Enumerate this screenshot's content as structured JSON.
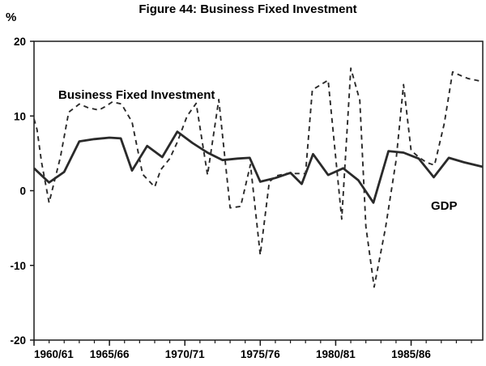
{
  "chart_data": {
    "type": "line",
    "title": "Figure 44: Business Fixed Investment",
    "ylabel": "%",
    "xlabel": "",
    "ylim": [
      -20,
      20
    ],
    "yticks": [
      -20,
      -10,
      0,
      10,
      20
    ],
    "x_range": [
      1960,
      1989.75
    ],
    "x_ticks": [
      {
        "label": "1960/61",
        "x": 1960
      },
      {
        "label": "1965/66",
        "x": 1965
      },
      {
        "label": "1970/71",
        "x": 1970
      },
      {
        "label": "1975/76",
        "x": 1975
      },
      {
        "label": "1980/81",
        "x": 1980
      },
      {
        "label": "1985/86",
        "x": 1985
      }
    ],
    "series": [
      {
        "name": "Business Fixed Investment",
        "style": "dashed",
        "label_text": "Business Fixed Investment",
        "x": [
          1960,
          1960.2,
          1960.5,
          1961,
          1961.75,
          1962.3,
          1963,
          1963.6,
          1964.3,
          1964.75,
          1965.2,
          1965.8,
          1966.5,
          1967.2,
          1968,
          1968.4,
          1969,
          1969.5,
          1970.15,
          1970.75,
          1971.5,
          1972.25,
          1973,
          1973.7,
          1974.35,
          1975,
          1975.6,
          1976.1,
          1976.75,
          1977.5,
          1978,
          1978.45,
          1979.5,
          1980.4,
          1981,
          1981.6,
          1982,
          1982.55,
          1983.3,
          1984,
          1984.5,
          1985,
          1985.5,
          1986,
          1986.55,
          1987.2,
          1987.75,
          1988.3,
          1988.8,
          1989.3,
          1989.75
        ],
        "values": [
          9.6,
          8.2,
          3.8,
          -1.6,
          4.5,
          10.5,
          11.6,
          11.1,
          10.8,
          11.3,
          11.9,
          11.6,
          9.2,
          2.2,
          0.5,
          2.8,
          4.3,
          6.5,
          10.0,
          11.7,
          2.1,
          12.2,
          -2.3,
          -2.1,
          3.5,
          -8.6,
          1.2,
          2.0,
          2.3,
          2.3,
          2.3,
          13.5,
          14.8,
          -3.8,
          16.4,
          12.1,
          -4.8,
          -12.9,
          -5.0,
          4.0,
          14.2,
          5.4,
          4.5,
          3.8,
          3.4,
          9.0,
          15.9,
          15.4,
          15.0,
          14.8,
          14.6
        ]
      },
      {
        "name": "GDP",
        "style": "solid",
        "label_text": "GDP",
        "x": [
          1960,
          1961,
          1962,
          1963,
          1964,
          1965,
          1965.75,
          1966.5,
          1967.5,
          1968.5,
          1969.5,
          1970.5,
          1971.5,
          1972.5,
          1973.5,
          1974.3,
          1975,
          1976,
          1977,
          1977.75,
          1978.5,
          1979.5,
          1980.5,
          1981.5,
          1982.5,
          1983.5,
          1984.5,
          1985.5,
          1986.5,
          1987.5,
          1988.5,
          1989.75
        ],
        "values": [
          3.0,
          1.1,
          2.5,
          6.6,
          6.9,
          7.1,
          7.0,
          2.7,
          6.0,
          4.5,
          7.9,
          6.4,
          5.1,
          4.1,
          4.3,
          4.4,
          1.2,
          1.7,
          2.4,
          0.9,
          4.9,
          2.1,
          3.0,
          1.4,
          -1.6,
          5.3,
          5.1,
          4.3,
          1.8,
          4.4,
          3.8,
          3.2
        ]
      }
    ]
  }
}
